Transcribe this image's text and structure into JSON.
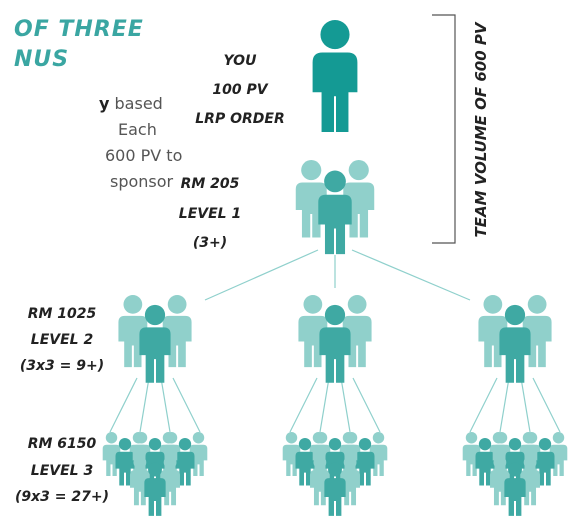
{
  "header": {
    "title_lines": [
      "OF THREE",
      "NUS"
    ]
  },
  "body": {
    "bold": "y",
    "lines": [
      " based",
      "Each",
      "600 PV to",
      "sponsor"
    ]
  },
  "you": {
    "lines": [
      "YOU",
      "100 PV",
      "LRP ORDER"
    ]
  },
  "levels": [
    {
      "lines": [
        "RM 205",
        "LEVEL 1",
        "(3+)"
      ]
    },
    {
      "lines": [
        "RM 1025",
        "LEVEL 2",
        "(3x3 = 9+)"
      ]
    },
    {
      "lines": [
        "RM 6150",
        "LEVEL 3",
        "(9x3 = 27+)"
      ]
    }
  ],
  "bracket_label": "TEAM VOLUME OF 600 PV"
}
